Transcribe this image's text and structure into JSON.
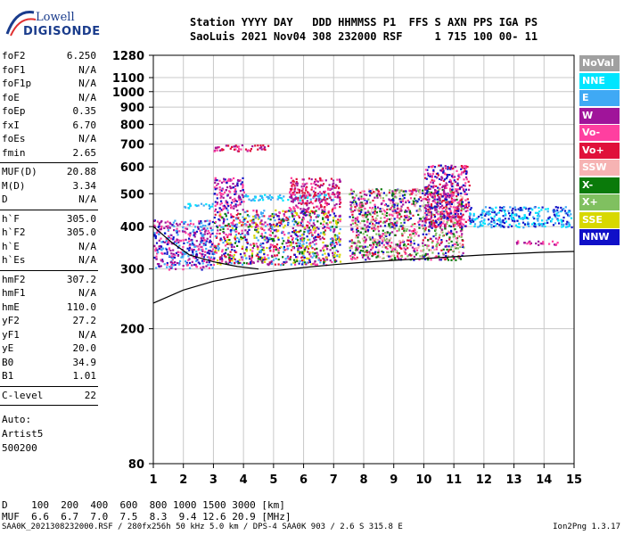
{
  "logo": {
    "top": "Lowell",
    "bottom": "DIGISONDE"
  },
  "header": {
    "labels": "Station YYYY DAY   DDD HHMMSS P1  FFS S AXN PPS IGA PS",
    "values": "SaoLuis 2021 Nov04 308 232000 RSF     1 715 100 00- 11"
  },
  "params": [
    {
      "name": "foF2",
      "value": "6.250"
    },
    {
      "name": "foF1",
      "value": "N/A"
    },
    {
      "name": "foF1p",
      "value": "N/A"
    },
    {
      "name": "foE",
      "value": "N/A"
    },
    {
      "name": "foEp",
      "value": "0.35"
    },
    {
      "name": "fxI",
      "value": "6.70"
    },
    {
      "name": "foEs",
      "value": "N/A"
    },
    {
      "name": "fmin",
      "value": "2.65"
    },
    {
      "name": "MUF(D)",
      "value": "20.88"
    },
    {
      "name": "M(D)",
      "value": "3.34"
    },
    {
      "name": "D",
      "value": "N/A"
    },
    {
      "name": "h`F",
      "value": "305.0"
    },
    {
      "name": "h`F2",
      "value": "305.0"
    },
    {
      "name": "h`E",
      "value": "N/A"
    },
    {
      "name": "h`Es",
      "value": "N/A"
    },
    {
      "name": "hmF2",
      "value": "307.2"
    },
    {
      "name": "hmF1",
      "value": "N/A"
    },
    {
      "name": "hmE",
      "value": "110.0"
    },
    {
      "name": "yF2",
      "value": "27.2"
    },
    {
      "name": "yF1",
      "value": "N/A"
    },
    {
      "name": "yE",
      "value": "20.0"
    },
    {
      "name": "B0",
      "value": "34.9"
    },
    {
      "name": "B1",
      "value": "1.01"
    },
    {
      "name": "C-level",
      "value": "22"
    }
  ],
  "autoscaling": {
    "label": "Auto:",
    "name": "Artist5",
    "code": "500200"
  },
  "legend": [
    {
      "label": "NoVal",
      "color": "#a0a0a0"
    },
    {
      "label": "NNE",
      "color": "#00e5ff"
    },
    {
      "label": "E",
      "color": "#3fa9f5"
    },
    {
      "label": "W",
      "color": "#a0149a"
    },
    {
      "label": "Vo-",
      "color": "#ff3fa0"
    },
    {
      "label": "Vo+",
      "color": "#e0103a"
    },
    {
      "label": "SSW",
      "color": "#f6b3b3"
    },
    {
      "label": "X-",
      "color": "#0a7a0a"
    },
    {
      "label": "X+",
      "color": "#80c060"
    },
    {
      "label": "SSE",
      "color": "#d8d800"
    },
    {
      "label": "NNW",
      "color": "#1010c8"
    }
  ],
  "bottom": {
    "d_line": "D    100  200  400  600  800 1000 1500 3000 [km]",
    "muf_line": "MUF  6.6  6.7  7.0  7.5  8.3  9.4 12.6 20.9 [MHz]"
  },
  "footer": {
    "left": "SAA0K_2021308232000.RSF / 280fx256h 50 kHz 5.0 km / DPS-4 SAA0K 903 / 2.6 S 315.8 E",
    "right": "Ion2Png 1.3.17"
  },
  "chart_data": {
    "type": "scatter",
    "x_ticks": [
      1,
      2,
      3,
      4,
      5,
      6,
      7,
      8,
      9,
      10,
      11,
      12,
      13,
      14,
      15
    ],
    "y_ticks": [
      80,
      200,
      300,
      400,
      500,
      600,
      700,
      800,
      900,
      1000,
      1100,
      1280
    ],
    "xlim": [
      1,
      15
    ],
    "ylim": [
      80,
      1280
    ],
    "yscale": "log",
    "grid": true,
    "clusters": [
      {
        "x": [
          1.0,
          3.0
        ],
        "y": [
          300,
          420
        ],
        "colors": [
          "#a0149a",
          "#1010c8",
          "#3fa9f5",
          "#ff3fa0"
        ]
      },
      {
        "x": [
          2.0,
          3.0
        ],
        "y": [
          455,
          470
        ],
        "colors": [
          "#3fa9f5",
          "#00e5ff"
        ]
      },
      {
        "x": [
          3.0,
          7.2
        ],
        "y": [
          310,
          450
        ],
        "colors": [
          "#a0149a",
          "#ff3fa0",
          "#e0103a",
          "#1010c8",
          "#0a7a0a",
          "#d8d800",
          "#3fa9f5"
        ]
      },
      {
        "x": [
          3.0,
          4.0
        ],
        "y": [
          450,
          560
        ],
        "colors": [
          "#a0149a",
          "#ff3fa0",
          "#1010c8"
        ]
      },
      {
        "x": [
          3.0,
          4.8
        ],
        "y": [
          670,
          700
        ],
        "colors": [
          "#a0149a",
          "#ff3fa0",
          "#e0103a"
        ]
      },
      {
        "x": [
          4.0,
          7.0
        ],
        "y": [
          480,
          500
        ],
        "colors": [
          "#00e5ff",
          "#3fa9f5"
        ]
      },
      {
        "x": [
          5.5,
          7.2
        ],
        "y": [
          450,
          560
        ],
        "colors": [
          "#a0149a",
          "#ff3fa0",
          "#e0103a"
        ]
      },
      {
        "x": [
          7.5,
          11.3
        ],
        "y": [
          320,
          520
        ],
        "colors": [
          "#a0149a",
          "#ff3fa0",
          "#e0103a",
          "#1010c8",
          "#0a7a0a",
          "#80c060",
          "#f6b3b3"
        ]
      },
      {
        "x": [
          10.0,
          11.5
        ],
        "y": [
          400,
          610
        ],
        "colors": [
          "#a0149a",
          "#ff3fa0",
          "#e0103a",
          "#1010c8"
        ]
      },
      {
        "x": [
          11.5,
          14.9
        ],
        "y": [
          400,
          460
        ],
        "colors": [
          "#00e5ff",
          "#3fa9f5",
          "#1010c8"
        ]
      },
      {
        "x": [
          13.0,
          14.5
        ],
        "y": [
          355,
          365
        ],
        "colors": [
          "#a0149a",
          "#ff3fa0"
        ]
      }
    ],
    "profile_lines": [
      {
        "x": [
          1.0,
          2.0,
          3.0,
          4.0,
          5.0,
          6.0,
          7.0,
          8.0,
          9.0,
          10.0,
          11.0,
          12.0,
          13.0,
          14.0,
          15.0
        ],
        "y": [
          238,
          260,
          276,
          287,
          296,
          303,
          309,
          314,
          318,
          322,
          326,
          330,
          333,
          336,
          338
        ]
      },
      {
        "x": [
          1.0,
          1.6,
          2.2,
          3.0,
          3.8,
          4.5
        ],
        "y": [
          400,
          360,
          330,
          315,
          305,
          300
        ]
      }
    ]
  }
}
